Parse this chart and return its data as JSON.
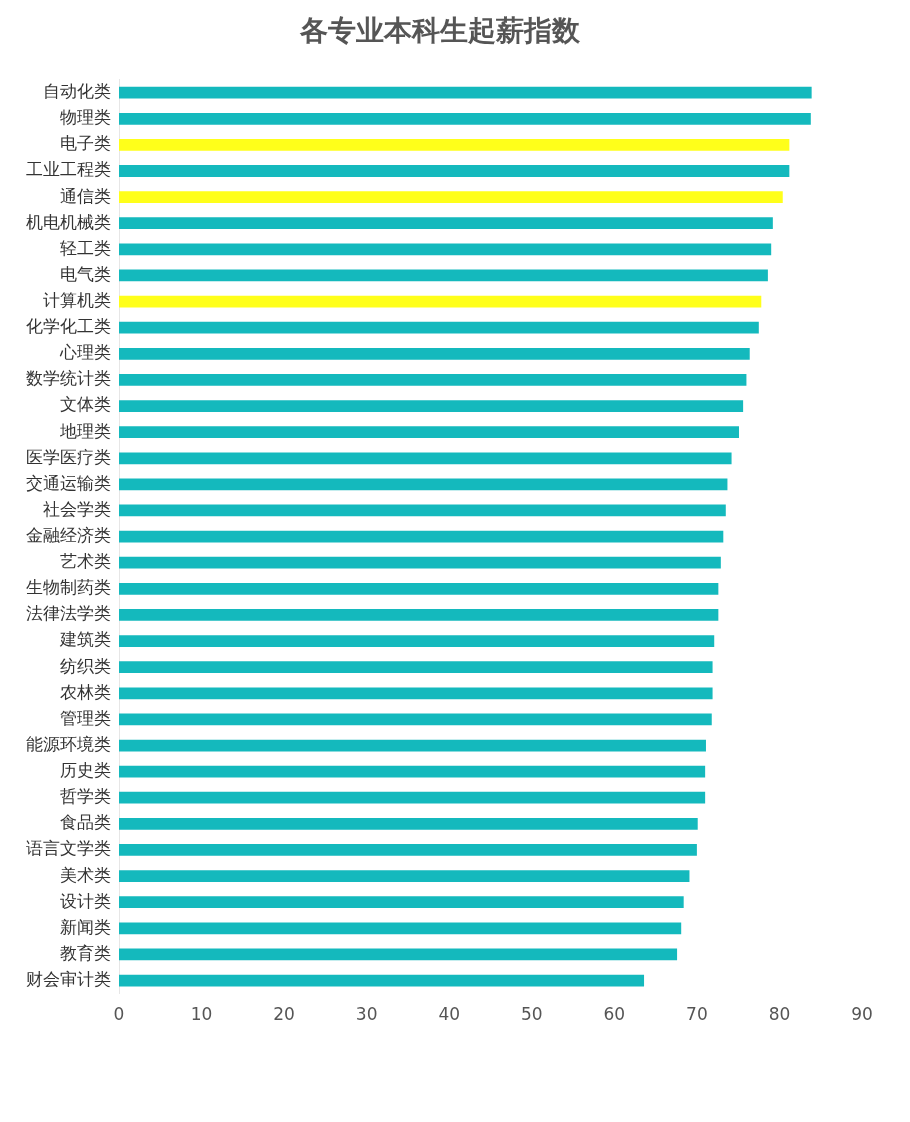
{
  "chart_data": {
    "type": "bar",
    "orientation": "horizontal",
    "title": "各专业本科生起薪指数",
    "categories": [
      "自动化类",
      "物理类",
      "电子类",
      "工业工程类",
      "通信类",
      "机电机械类",
      "轻工类",
      "电气类",
      "计算机类",
      "化学化工类",
      "心理类",
      "数学统计类",
      "文体类",
      "地理类",
      "医学医疗类",
      "交通运输类",
      "社会学类",
      "金融经济类",
      "艺术类",
      "生物制药类",
      "法律法学类",
      "建筑类",
      "纺织类",
      "农林类",
      "管理类",
      "能源环境类",
      "历史类",
      "哲学类",
      "食品类",
      "语言文学类",
      "美术类",
      "设计类",
      "新闻类",
      "教育类",
      "财会审计类"
    ],
    "values": [
      83.9,
      83.8,
      81.2,
      81.2,
      80.4,
      79.2,
      79.0,
      78.6,
      77.8,
      77.5,
      76.4,
      76.0,
      75.6,
      75.1,
      74.2,
      73.7,
      73.5,
      73.2,
      72.9,
      72.6,
      72.6,
      72.1,
      71.9,
      71.9,
      71.8,
      71.1,
      71.0,
      71.0,
      70.1,
      70.0,
      69.1,
      68.4,
      68.1,
      67.6,
      63.6
    ],
    "colors": [
      "#14b9bd",
      "#14b9bd",
      "#ffff1a",
      "#14b9bd",
      "#ffff1a",
      "#14b9bd",
      "#14b9bd",
      "#14b9bd",
      "#ffff1a",
      "#14b9bd",
      "#14b9bd",
      "#14b9bd",
      "#14b9bd",
      "#14b9bd",
      "#14b9bd",
      "#14b9bd",
      "#14b9bd",
      "#14b9bd",
      "#14b9bd",
      "#14b9bd",
      "#14b9bd",
      "#14b9bd",
      "#14b9bd",
      "#14b9bd",
      "#14b9bd",
      "#14b9bd",
      "#14b9bd",
      "#14b9bd",
      "#14b9bd",
      "#14b9bd",
      "#14b9bd",
      "#14b9bd",
      "#14b9bd",
      "#14b9bd",
      "#14b9bd"
    ],
    "xlim": [
      0,
      90
    ],
    "xticks": [
      0,
      10,
      20,
      30,
      40,
      50,
      60,
      70,
      80,
      90
    ],
    "grid": false,
    "legend": false
  }
}
